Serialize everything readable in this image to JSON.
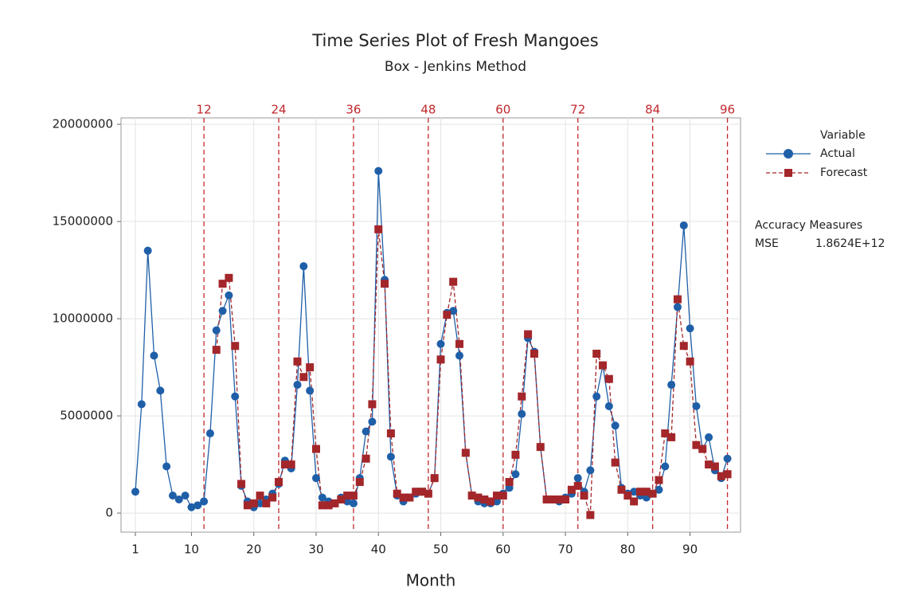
{
  "chart_data": {
    "type": "line",
    "title": "Time Series Plot of Fresh Mangoes",
    "subtitle": "Box - Jenkins Method",
    "xlabel": "Month",
    "legend_title": "Variable",
    "x": [
      1,
      2,
      3,
      4,
      5,
      6,
      7,
      8,
      9,
      10,
      11,
      12,
      13,
      14,
      15,
      16,
      17,
      18,
      19,
      20,
      21,
      22,
      23,
      24,
      25,
      26,
      27,
      28,
      29,
      30,
      31,
      32,
      33,
      34,
      35,
      36,
      37,
      38,
      39,
      40,
      41,
      42,
      43,
      44,
      45,
      46,
      47,
      48,
      49,
      50,
      51,
      52,
      53,
      54,
      55,
      56,
      57,
      58,
      59,
      60,
      61,
      62,
      63,
      64,
      65,
      66,
      67,
      68,
      69,
      70,
      71,
      72,
      73,
      74,
      75,
      76,
      77,
      78,
      79,
      80,
      81,
      82,
      83,
      84,
      85,
      86,
      87,
      88,
      89,
      90,
      91,
      92,
      93,
      94,
      95,
      96
    ],
    "series": [
      {
        "name": "Actual",
        "color": "#1f5fa8",
        "marker": "circle",
        "values": [
          1100000,
          5600000,
          13500000,
          8100000,
          6300000,
          2400000,
          900000,
          700000,
          900000,
          300000,
          400000,
          600000,
          4100000,
          9400000,
          10400000,
          11200000,
          6000000,
          1400000,
          600000,
          300000,
          500000,
          700000,
          1000000,
          1500000,
          2700000,
          2300000,
          6600000,
          12700000,
          6300000,
          1800000,
          800000,
          600000,
          500000,
          800000,
          600000,
          500000,
          1800000,
          4200000,
          4700000,
          17600000,
          12000000,
          2900000,
          900000,
          600000,
          800000,
          1000000,
          1100000,
          1000000,
          1800000,
          8700000,
          10300000,
          10400000,
          8100000,
          3100000,
          900000,
          600000,
          500000,
          500000,
          600000,
          1000000,
          1300000,
          2000000,
          5100000,
          9000000,
          8300000,
          3400000,
          700000,
          700000,
          600000,
          800000,
          1000000,
          1800000,
          1100000,
          2200000,
          6000000,
          7600000,
          5500000,
          4500000,
          1300000,
          1000000,
          1100000,
          900000,
          800000,
          1000000,
          1200000,
          2400000,
          6600000,
          10600000,
          14800000,
          9500000,
          5500000,
          3300000,
          3900000,
          2200000,
          1800000,
          2800000
        ]
      },
      {
        "name": "Forecast",
        "color": "#a3262a",
        "marker": "square",
        "dashed": true,
        "values": [
          null,
          null,
          null,
          null,
          null,
          null,
          null,
          null,
          null,
          null,
          null,
          null,
          null,
          8400000,
          11800000,
          12100000,
          8600000,
          1500000,
          400000,
          500000,
          900000,
          500000,
          800000,
          1600000,
          2500000,
          2500000,
          7800000,
          7000000,
          7500000,
          3300000,
          400000,
          400000,
          500000,
          700000,
          900000,
          900000,
          1600000,
          2800000,
          5600000,
          14600000,
          11800000,
          4100000,
          1000000,
          800000,
          800000,
          1100000,
          1100000,
          1000000,
          1800000,
          7900000,
          10200000,
          11900000,
          8700000,
          3100000,
          900000,
          800000,
          700000,
          600000,
          900000,
          900000,
          1600000,
          3000000,
          6000000,
          9200000,
          8200000,
          3400000,
          700000,
          700000,
          700000,
          700000,
          1200000,
          1400000,
          900000,
          -100000,
          8200000,
          7600000,
          6900000,
          2600000,
          1200000,
          900000,
          600000,
          1100000,
          1100000,
          1000000,
          1700000,
          4100000,
          3900000,
          11000000,
          8600000,
          7800000,
          3500000,
          3300000,
          2500000,
          2400000,
          1900000,
          2000000
        ]
      }
    ],
    "xlim": [
      -1.3,
      98.1
    ],
    "xticks": [
      1,
      10,
      20,
      30,
      40,
      50,
      60,
      70,
      80,
      90
    ],
    "ylim": [
      -980000,
      20330000
    ],
    "yticks": [
      0,
      5000000,
      10000000,
      15000000,
      20000000
    ],
    "grid": true,
    "reference_lines": {
      "color": "#c0282d",
      "values": [
        12,
        24,
        36,
        48,
        60,
        72,
        84,
        96
      ]
    },
    "accuracy": {
      "title": "Accuracy Measures",
      "measure": "MSE",
      "value": "1.8624E+12"
    }
  }
}
